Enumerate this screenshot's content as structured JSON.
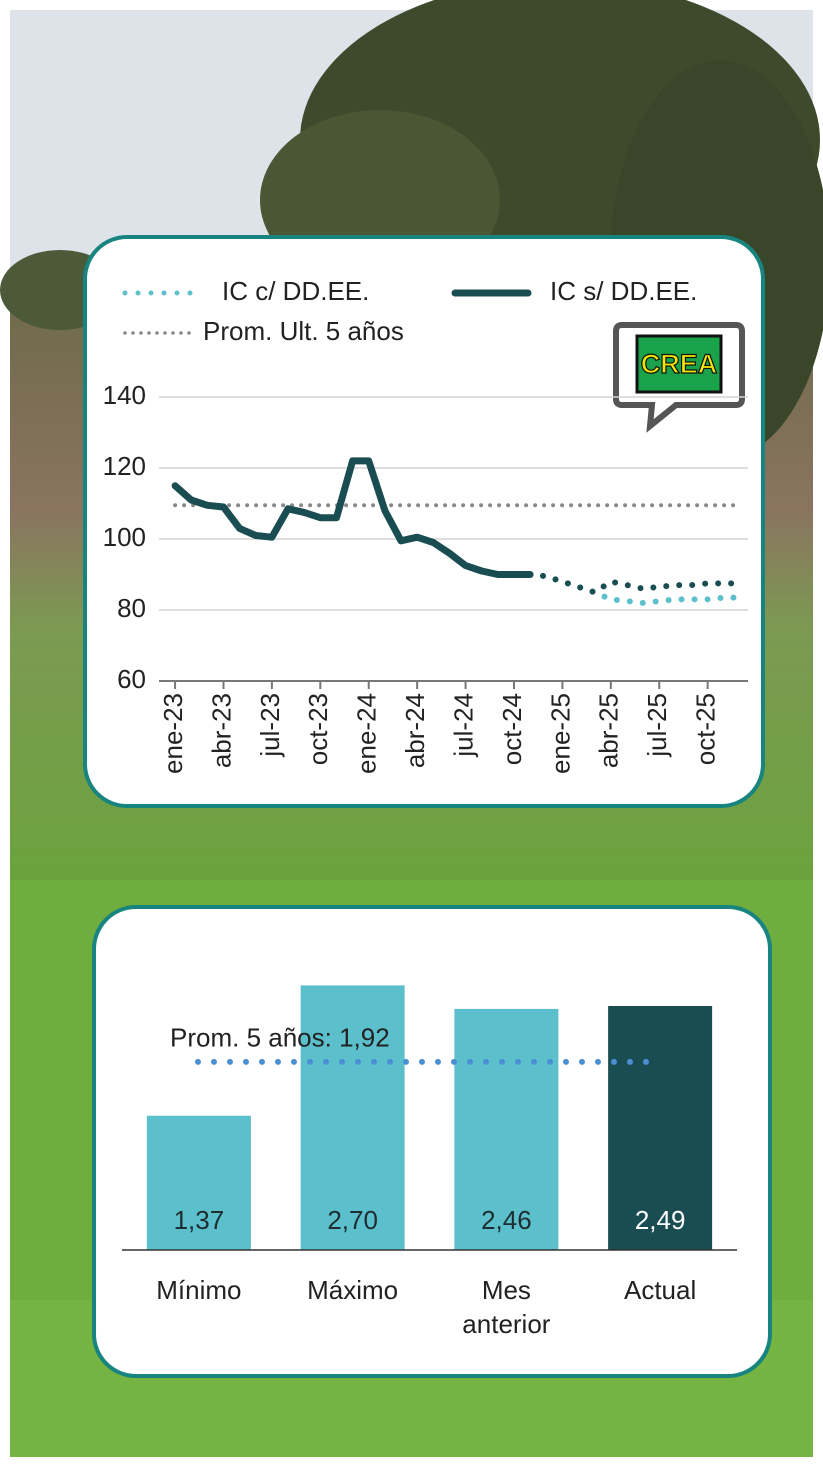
{
  "logo": "CREA",
  "chart_data": [
    {
      "type": "line",
      "categories": [
        "ene-23",
        null,
        null,
        "abr-23",
        null,
        null,
        "jul-23",
        null,
        null,
        "oct-23",
        null,
        null,
        "ene-24",
        null,
        null,
        "abr-24",
        null,
        null,
        "jul-24",
        null,
        null,
        "oct-24",
        null,
        null,
        "ene-25",
        null,
        null,
        "abr-25",
        null,
        null,
        "jul-25",
        null,
        null,
        "oct-25",
        null,
        null
      ],
      "series": [
        {
          "name": "IC c/ DD.EE.",
          "color": "#5bbfcc",
          "dotted_from": 0,
          "values": [
            null,
            null,
            null,
            null,
            null,
            null,
            null,
            null,
            null,
            null,
            null,
            null,
            null,
            null,
            null,
            null,
            null,
            null,
            null,
            null,
            null,
            null,
            90,
            89.5,
            88,
            86.5,
            85,
            83,
            82.5,
            82,
            82.5,
            83,
            83,
            83,
            83.5,
            83.5
          ]
        },
        {
          "name": "IC s/ DD.EE.",
          "color": "#1a4d52",
          "dotted_from": 22,
          "values": [
            115,
            111,
            109.5,
            109,
            103,
            101,
            100.5,
            108.5,
            107.5,
            106,
            106,
            122,
            122,
            108,
            99.5,
            100.5,
            99,
            96,
            92.5,
            91,
            90,
            90,
            90,
            89.5,
            88,
            86.5,
            85,
            88,
            87,
            86,
            86.5,
            87,
            87,
            87.5,
            87.5,
            87.5
          ]
        },
        {
          "name": "Prom. Ult. 5 años",
          "color": "#888888",
          "dotted_from": 0,
          "values": [
            109.5,
            109.5,
            109.5,
            109.5,
            109.5,
            109.5,
            109.5,
            109.5,
            109.5,
            109.5,
            109.5,
            109.5,
            109.5,
            109.5,
            109.5,
            109.5,
            109.5,
            109.5,
            109.5,
            109.5,
            109.5,
            109.5,
            109.5,
            109.5,
            109.5,
            109.5,
            109.5,
            109.5,
            109.5,
            109.5,
            109.5,
            109.5,
            109.5,
            109.5,
            109.5,
            109.5
          ]
        }
      ],
      "ylim": [
        60,
        140
      ],
      "yticks": [
        60,
        80,
        100,
        120,
        140
      ],
      "grid": true
    },
    {
      "type": "bar",
      "categories": [
        "Mínimo",
        "Máximo",
        "Mes anterior",
        "Actual"
      ],
      "values": [
        1.37,
        2.7,
        2.46,
        2.49
      ],
      "value_labels": [
        "1,37",
        "2,70",
        "2,46",
        "2,49"
      ],
      "colors": [
        "#5bbfcc",
        "#5bbfcc",
        "#5bbfcc",
        "#1a4d52"
      ],
      "reference_line": {
        "label": "Prom. 5 años: 1,92",
        "value": 1.92,
        "color": "#4a8fd4"
      }
    }
  ]
}
